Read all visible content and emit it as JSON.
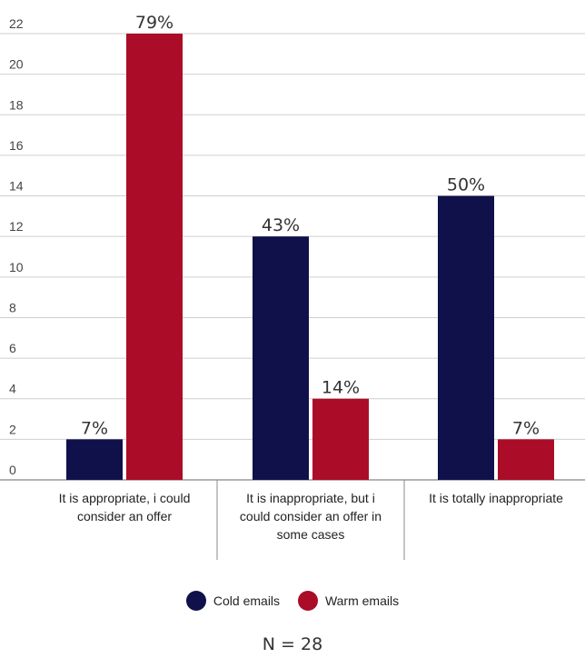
{
  "chart_data": {
    "type": "bar",
    "categories": [
      "It is appropriate, i could consider an offer",
      "It is inappropriate, but i could consider an offer in some cases",
      "It is totally inappropriate"
    ],
    "category_lines": [
      [
        "It is appropriate, i could",
        "consider an offer"
      ],
      [
        "It is inappropriate, but i",
        "could consider an offer in",
        "some cases"
      ],
      [
        "It is totally inappropriate"
      ]
    ],
    "series": [
      {
        "name": "Cold emails",
        "values": [
          2,
          12,
          14
        ],
        "labels": [
          "7%",
          "43%",
          "50%"
        ],
        "color": "#10104a"
      },
      {
        "name": "Warm emails",
        "values": [
          22,
          4,
          2
        ],
        "labels": [
          "79%",
          "14%",
          "7%"
        ],
        "color": "#ab0c28"
      }
    ],
    "ylim": [
      0,
      22
    ],
    "yticks": [
      0,
      2,
      4,
      6,
      8,
      10,
      12,
      14,
      16,
      18,
      20,
      22
    ],
    "grid": true,
    "legend_position": "bottom"
  },
  "footnote": "N = 28"
}
